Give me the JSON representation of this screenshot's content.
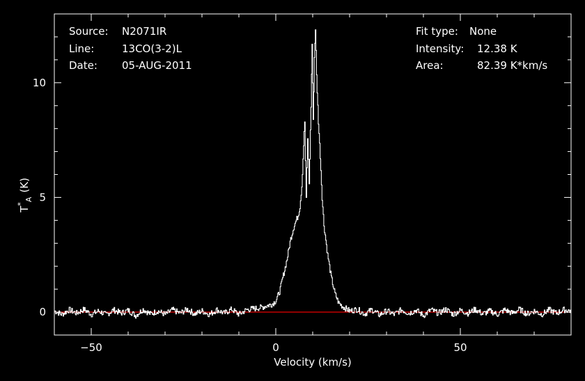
{
  "colors": {
    "background": "#000000",
    "foreground": "#ffffff",
    "spectrum": "#ffffff",
    "baseline": "#ff0000"
  },
  "info_left": [
    {
      "label": "Source:",
      "value": "N2071IR"
    },
    {
      "label": "Line:",
      "value": "13CO(3-2)L"
    },
    {
      "label": "Date:",
      "value": "05-AUG-2011"
    }
  ],
  "info_right": [
    {
      "label": "Fit type:",
      "value": "None"
    },
    {
      "label": "Intensity:",
      "value": "12.38 K"
    },
    {
      "label": "Area:",
      "value": "82.39 K*km/s"
    }
  ],
  "chart_data": {
    "type": "line",
    "xlabel": "Velocity (km/s)",
    "ylabel_main": "T",
    "ylabel_sup": "*",
    "ylabel_sub": "A",
    "ylabel_unit": "(K)",
    "xlim": [
      -60,
      80
    ],
    "ylim": [
      -1,
      13
    ],
    "x_ticks": [
      {
        "value": -50,
        "label": "−50"
      },
      {
        "value": 0,
        "label": "0"
      },
      {
        "value": 50,
        "label": "50"
      }
    ],
    "y_ticks": [
      {
        "value": 0,
        "label": "0"
      },
      {
        "value": 5,
        "label": "5"
      },
      {
        "value": 10,
        "label": "10"
      }
    ],
    "x_minor_step": 10,
    "y_minor_step": 1,
    "baseline": 0,
    "grid": false,
    "series": [
      {
        "points": [
          [
            -60,
            0.05
          ],
          [
            -58,
            -0.1
          ],
          [
            -56,
            0.1
          ],
          [
            -54,
            -0.05
          ],
          [
            -52,
            0.12
          ],
          [
            -50,
            -0.1
          ],
          [
            -48,
            0.05
          ],
          [
            -46,
            -0.12
          ],
          [
            -44,
            0.1
          ],
          [
            -42,
            -0.05
          ],
          [
            -40,
            0.08
          ],
          [
            -38,
            -0.15
          ],
          [
            -36,
            0.12
          ],
          [
            -34,
            -0.08
          ],
          [
            -32,
            0.05
          ],
          [
            -30,
            -0.1
          ],
          [
            -28,
            0.1
          ],
          [
            -26,
            -0.05
          ],
          [
            -24,
            0.12
          ],
          [
            -22,
            -0.08
          ],
          [
            -20,
            0.05
          ],
          [
            -18,
            -0.1
          ],
          [
            -16,
            0.1
          ],
          [
            -14,
            -0.05
          ],
          [
            -12,
            0.12
          ],
          [
            -10,
            -0.1
          ],
          [
            -8,
            0.1
          ],
          [
            -6,
            0.15
          ],
          [
            -4,
            0.2
          ],
          [
            -2,
            0.3
          ],
          [
            -1,
            0.35
          ],
          [
            0,
            0.5
          ],
          [
            1,
            0.9
          ],
          [
            2,
            1.6
          ],
          [
            3,
            2.3
          ],
          [
            4,
            3.2
          ],
          [
            5,
            3.8
          ],
          [
            6,
            4.2
          ],
          [
            6.5,
            4.6
          ],
          [
            7,
            5.5
          ],
          [
            7.5,
            7.3
          ],
          [
            7.8,
            8.3
          ],
          [
            8.2,
            4.9
          ],
          [
            8.6,
            7.6
          ],
          [
            9,
            5.6
          ],
          [
            9.5,
            9.0
          ],
          [
            9.8,
            11.7
          ],
          [
            10.1,
            8.3
          ],
          [
            10.4,
            11.1
          ],
          [
            10.7,
            12.38
          ],
          [
            11,
            10.3
          ],
          [
            11.5,
            8.3
          ],
          [
            12,
            6.8
          ],
          [
            12.5,
            5.0
          ],
          [
            13,
            3.8
          ],
          [
            14,
            2.5
          ],
          [
            15,
            1.5
          ],
          [
            16,
            0.8
          ],
          [
            17,
            0.4
          ],
          [
            18,
            0.25
          ],
          [
            19,
            0.15
          ],
          [
            20,
            0.05
          ],
          [
            22,
            0.12
          ],
          [
            24,
            -0.08
          ],
          [
            26,
            0.1
          ],
          [
            28,
            -0.12
          ],
          [
            30,
            0.05
          ],
          [
            32,
            -0.1
          ],
          [
            34,
            0.1
          ],
          [
            36,
            -0.05
          ],
          [
            38,
            0.08
          ],
          [
            40,
            -0.15
          ],
          [
            42,
            0.1
          ],
          [
            44,
            -0.05
          ],
          [
            46,
            0.12
          ],
          [
            48,
            -0.1
          ],
          [
            50,
            0.08
          ],
          [
            52,
            -0.05
          ],
          [
            54,
            0.12
          ],
          [
            56,
            -0.08
          ],
          [
            58,
            0.05
          ],
          [
            60,
            -0.1
          ],
          [
            62,
            0.1
          ],
          [
            64,
            -0.05
          ],
          [
            66,
            0.12
          ],
          [
            68,
            -0.08
          ],
          [
            70,
            0.05
          ],
          [
            72,
            -0.1
          ],
          [
            74,
            0.1
          ],
          [
            76,
            -0.05
          ],
          [
            78,
            0.1
          ],
          [
            80,
            0.05
          ]
        ]
      }
    ]
  }
}
